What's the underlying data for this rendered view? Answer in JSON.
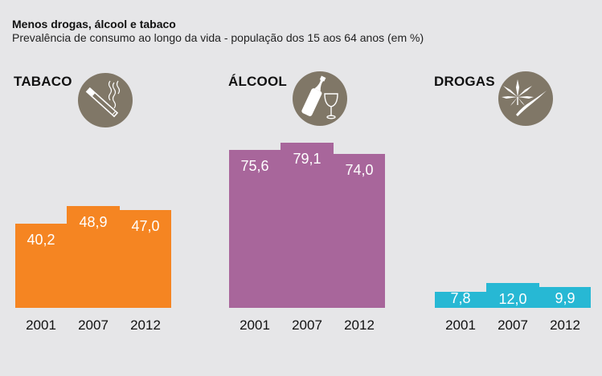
{
  "header": {
    "title": "Menos drogas, álcool e tabaco",
    "subtitle": "Prevalência de consumo ao longo da vida - população dos 15 aos 64 anos (em %)"
  },
  "colors": {
    "tabaco": "#f58522",
    "alcool": "#a8669b",
    "drogas": "#27b8d4",
    "icon_circle": "#807767",
    "background": "#e6e6e8"
  },
  "chart_data": [
    {
      "type": "bar",
      "title": "TABACO",
      "icon": "cigarette-icon",
      "categories": [
        "2001",
        "2007",
        "2012"
      ],
      "values": [
        40.2,
        48.9,
        47.0
      ],
      "labels": [
        "40,2",
        "48,9",
        "47,0"
      ],
      "ylim": [
        0,
        100
      ],
      "unit": "%"
    },
    {
      "type": "bar",
      "title": "ÁLCOOL",
      "icon": "wine-bottle-glass-icon",
      "categories": [
        "2001",
        "2007",
        "2012"
      ],
      "values": [
        75.6,
        79.1,
        74.0
      ],
      "labels": [
        "75,6",
        "79,1",
        "74,0"
      ],
      "ylim": [
        0,
        100
      ],
      "unit": "%"
    },
    {
      "type": "bar",
      "title": "DROGAS",
      "icon": "cannabis-leaf-icon",
      "categories": [
        "2001",
        "2007",
        "2012"
      ],
      "values": [
        7.8,
        12.0,
        9.9
      ],
      "labels": [
        "7,8",
        "12,0",
        "9,9"
      ],
      "ylim": [
        0,
        100
      ],
      "unit": "%"
    }
  ]
}
